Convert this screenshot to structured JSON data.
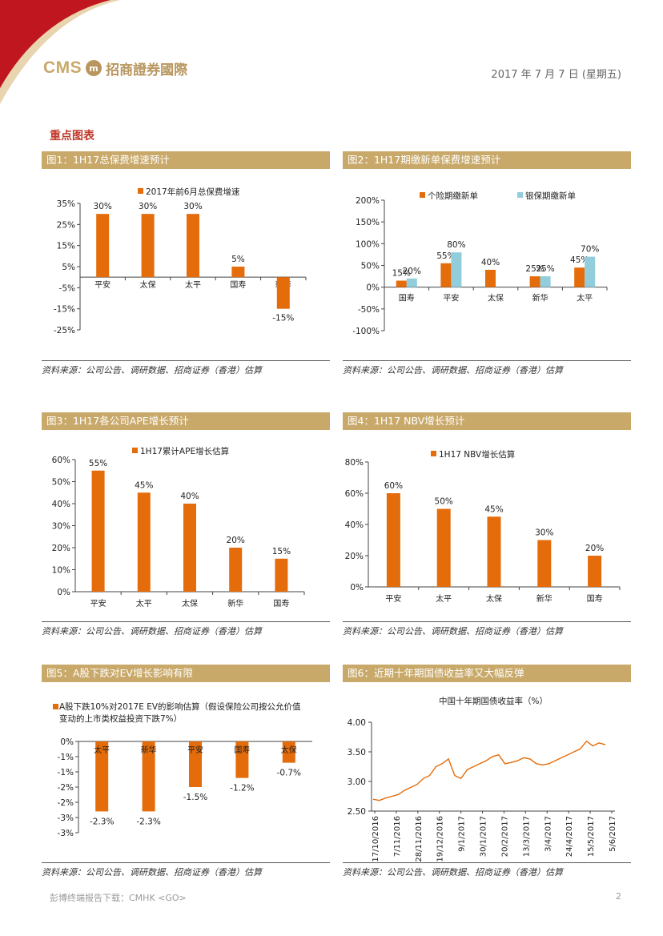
{
  "header": {
    "logo_latin": "CMS",
    "logo_cn": "招商證券國際",
    "date": "2017 年 7 月 7 日 (星期五)"
  },
  "section_title": "重点图表",
  "source_note": "资料来源：公司公告、调研数据、招商证券（香港）估算",
  "colors": {
    "orange": "#e46c0a",
    "lightblue": "#92cddc",
    "gold": "#c9a96a",
    "red": "#c0392b",
    "line": "#e46c0a"
  },
  "panels": [
    {
      "title": "图1：1H17总保费增速预计"
    },
    {
      "title": "图2：1H17期缴新单保费增速预计"
    },
    {
      "title": "图3：1H17各公司APE增长预计"
    },
    {
      "title": "图4：1H17 NBV增长预计"
    },
    {
      "title": "图5：A股下跌对EV增长影响有限"
    },
    {
      "title": "图6：近期十年期国债收益率又大幅反弹"
    }
  ],
  "chart_data": [
    {
      "type": "bar",
      "title": "图1：1H17总保费增速预计",
      "categories": [
        "平安",
        "太保",
        "太平",
        "国寿",
        "新华"
      ],
      "series": [
        {
          "name": "2017年前6月总保费增速",
          "values": [
            30,
            30,
            30,
            5,
            -15
          ]
        }
      ],
      "data_labels": [
        "30%",
        "30%",
        "30%",
        "5%",
        "-15%"
      ],
      "yticks": [
        "35%",
        "25%",
        "15%",
        "5%",
        "-5%",
        "-15%",
        "-25%"
      ],
      "ylim": [
        -25,
        35
      ]
    },
    {
      "type": "bar",
      "title": "图2：1H17期缴新单保费增速预计",
      "categories": [
        "国寿",
        "平安",
        "太保",
        "新华",
        "太平"
      ],
      "series": [
        {
          "name": "个险期缴新单",
          "values": [
            15,
            55,
            40,
            25,
            45
          ],
          "labels": [
            "15%",
            "55%",
            "40%",
            "25%",
            "45%"
          ]
        },
        {
          "name": "银保期缴新单",
          "values": [
            20,
            80,
            null,
            25,
            70
          ],
          "labels": [
            "20%",
            "80%",
            "",
            "25%",
            "70%"
          ]
        }
      ],
      "yticks": [
        "200%",
        "150%",
        "100%",
        "50%",
        "0%",
        "-50%",
        "-100%"
      ],
      "ylim": [
        -100,
        200
      ]
    },
    {
      "type": "bar",
      "title": "图3：1H17各公司APE增长预计",
      "categories": [
        "平安",
        "太平",
        "太保",
        "新华",
        "国寿"
      ],
      "series": [
        {
          "name": "1H17累计APE增长估算",
          "values": [
            55,
            45,
            40,
            20,
            15
          ]
        }
      ],
      "data_labels": [
        "55%",
        "45%",
        "40%",
        "20%",
        "15%"
      ],
      "yticks": [
        "60%",
        "50%",
        "40%",
        "30%",
        "20%",
        "10%",
        "0%"
      ],
      "ylim": [
        0,
        60
      ]
    },
    {
      "type": "bar",
      "title": "图4：1H17 NBV增长预计",
      "categories": [
        "平安",
        "太平",
        "太保",
        "新华",
        "国寿"
      ],
      "series": [
        {
          "name": "1H17 NBV增长估算",
          "values": [
            60,
            50,
            45,
            30,
            20
          ]
        }
      ],
      "data_labels": [
        "60%",
        "50%",
        "45%",
        "30%",
        "20%"
      ],
      "yticks": [
        "80%",
        "60%",
        "40%",
        "20%",
        "0%"
      ],
      "ylim": [
        0,
        80
      ]
    },
    {
      "type": "bar",
      "title": "图5：A股下跌对EV增长影响有限",
      "categories": [
        "太平",
        "新华",
        "平安",
        "国寿",
        "太保"
      ],
      "series": [
        {
          "name": "A股下跌10%对2017E EV的影响估算（假设保险公司按公允价值变动的上市类权益投资下跌7%）",
          "values": [
            -2.3,
            -2.3,
            -1.5,
            -1.2,
            -0.7
          ]
        }
      ],
      "legend_lines": [
        "A股下跌10%对2017E EV的影响估算（假设保险公司按公允价值",
        "变动的上市类权益投资下跌7%）"
      ],
      "data_labels": [
        "-2.3%",
        "-2.3%",
        "-1.5%",
        "-1.2%",
        "-0.7%"
      ],
      "yticks": [
        "0%",
        "-1%",
        "-1%",
        "-2%",
        "-2%",
        "-3%",
        "-3%"
      ],
      "ylim": [
        -3,
        0
      ]
    },
    {
      "type": "line",
      "title": "图6：近期十年期国债收益率又大幅反弹",
      "inner_title": "中国十年期国债收益率（%）",
      "xticks": [
        "17/10/2016",
        "7/11/2016",
        "28/11/2016",
        "19/12/2016",
        "9/1/2017",
        "30/1/2017",
        "20/2/2017",
        "13/3/2017",
        "3/4/2017",
        "24/4/2017",
        "15/5/2017",
        "5/6/2017"
      ],
      "yticks": [
        "4.00",
        "3.50",
        "3.00",
        "2.50"
      ],
      "ylim": [
        2.5,
        4.0
      ],
      "series": [
        {
          "name": "中国十年期国债收益率",
          "values": [
            2.7,
            2.68,
            2.72,
            2.75,
            2.78,
            2.85,
            2.9,
            2.95,
            3.05,
            3.1,
            3.25,
            3.3,
            3.38,
            3.1,
            3.05,
            3.2,
            3.25,
            3.3,
            3.35,
            3.42,
            3.45,
            3.3,
            3.32,
            3.35,
            3.4,
            3.38,
            3.3,
            3.28,
            3.3,
            3.35,
            3.4,
            3.45,
            3.5,
            3.55,
            3.68,
            3.6,
            3.65,
            3.62
          ]
        }
      ]
    }
  ],
  "footer": {
    "left": "彭博终端报告下载：CMHK <GO>",
    "page": "2"
  }
}
